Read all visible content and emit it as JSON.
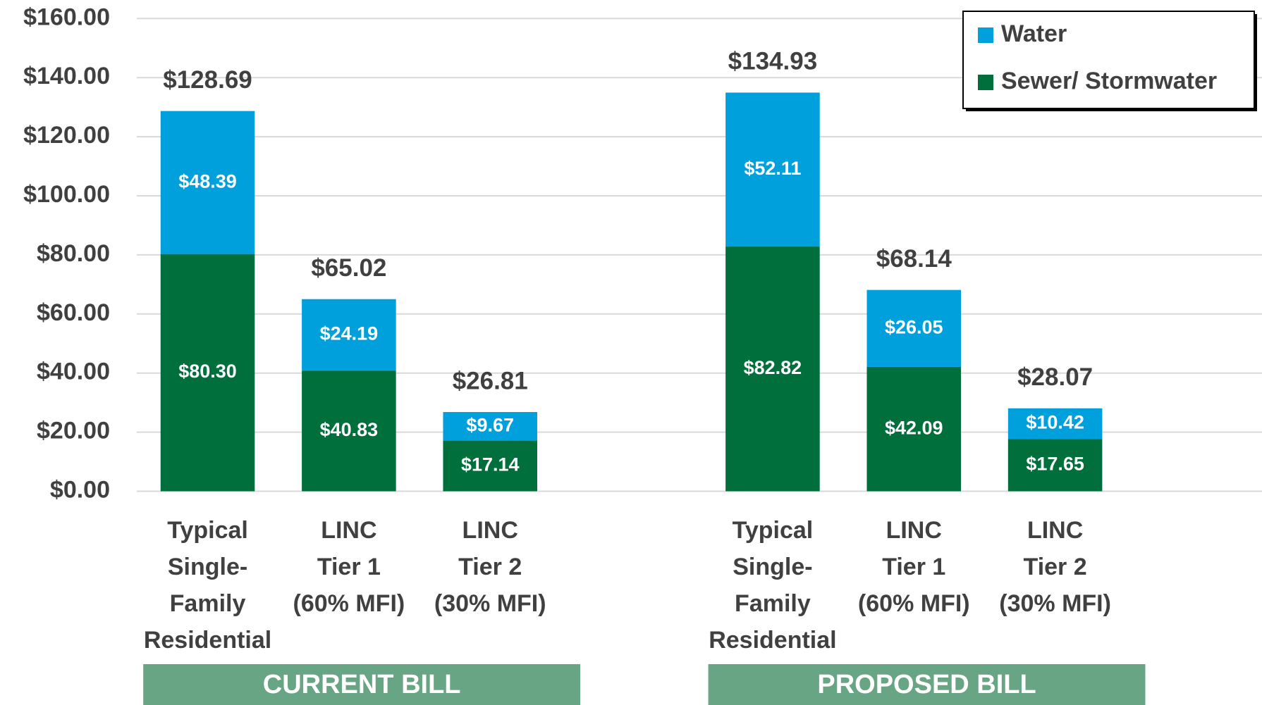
{
  "chart_data": {
    "type": "stacked_bar",
    "categories": [
      [
        "Typical",
        "Single-",
        "Family",
        "Residential"
      ],
      [
        "LINC",
        "Tier 1",
        "(60% MFI)"
      ],
      [
        "LINC",
        "Tier 2",
        "(30% MFI)"
      ],
      [
        "Typical",
        "Single-",
        "Family",
        "Residential"
      ],
      [
        "LINC",
        "Tier 1",
        "(60% MFI)"
      ],
      [
        "LINC",
        "Tier 2",
        "(30% MFI)"
      ]
    ],
    "groups": [
      "CURRENT BILL",
      "PROPOSED BILL"
    ],
    "group_color": "#68a584",
    "series": [
      {
        "name": "Sewer/ Stormwater",
        "color": "#006f3c",
        "values": [
          80.3,
          40.83,
          17.14,
          82.82,
          42.09,
          17.65
        ],
        "value_labels": [
          "$80.30",
          "$40.83",
          "$17.14",
          "$82.82",
          "$42.09",
          "$17.65"
        ]
      },
      {
        "name": "Water",
        "color": "#00a0dc",
        "values": [
          48.39,
          24.19,
          9.67,
          52.11,
          26.05,
          10.42
        ],
        "value_labels": [
          "$48.39",
          "$24.19",
          "$9.67",
          "$52.11",
          "$26.05",
          "$10.42"
        ]
      }
    ],
    "totals": [
      128.69,
      65.02,
      26.81,
      134.93,
      68.14,
      28.07
    ],
    "total_labels": [
      "$128.69",
      "$65.02",
      "$26.81",
      "$134.93",
      "$68.14",
      "$28.07"
    ],
    "ylim": [
      0,
      160
    ],
    "yticks": [
      {
        "value": 0,
        "label": "$0.00"
      },
      {
        "value": 20,
        "label": "$20.00"
      },
      {
        "value": 40,
        "label": "$40.00"
      },
      {
        "value": 60,
        "label": "$60.00"
      },
      {
        "value": 80,
        "label": "$80.00"
      },
      {
        "value": 100,
        "label": "$100.00"
      },
      {
        "value": 120,
        "label": "$120.00"
      },
      {
        "value": 140,
        "label": "$140.00"
      },
      {
        "value": 160,
        "label": "$160.00"
      }
    ],
    "grid": true,
    "legend": "top-right"
  }
}
